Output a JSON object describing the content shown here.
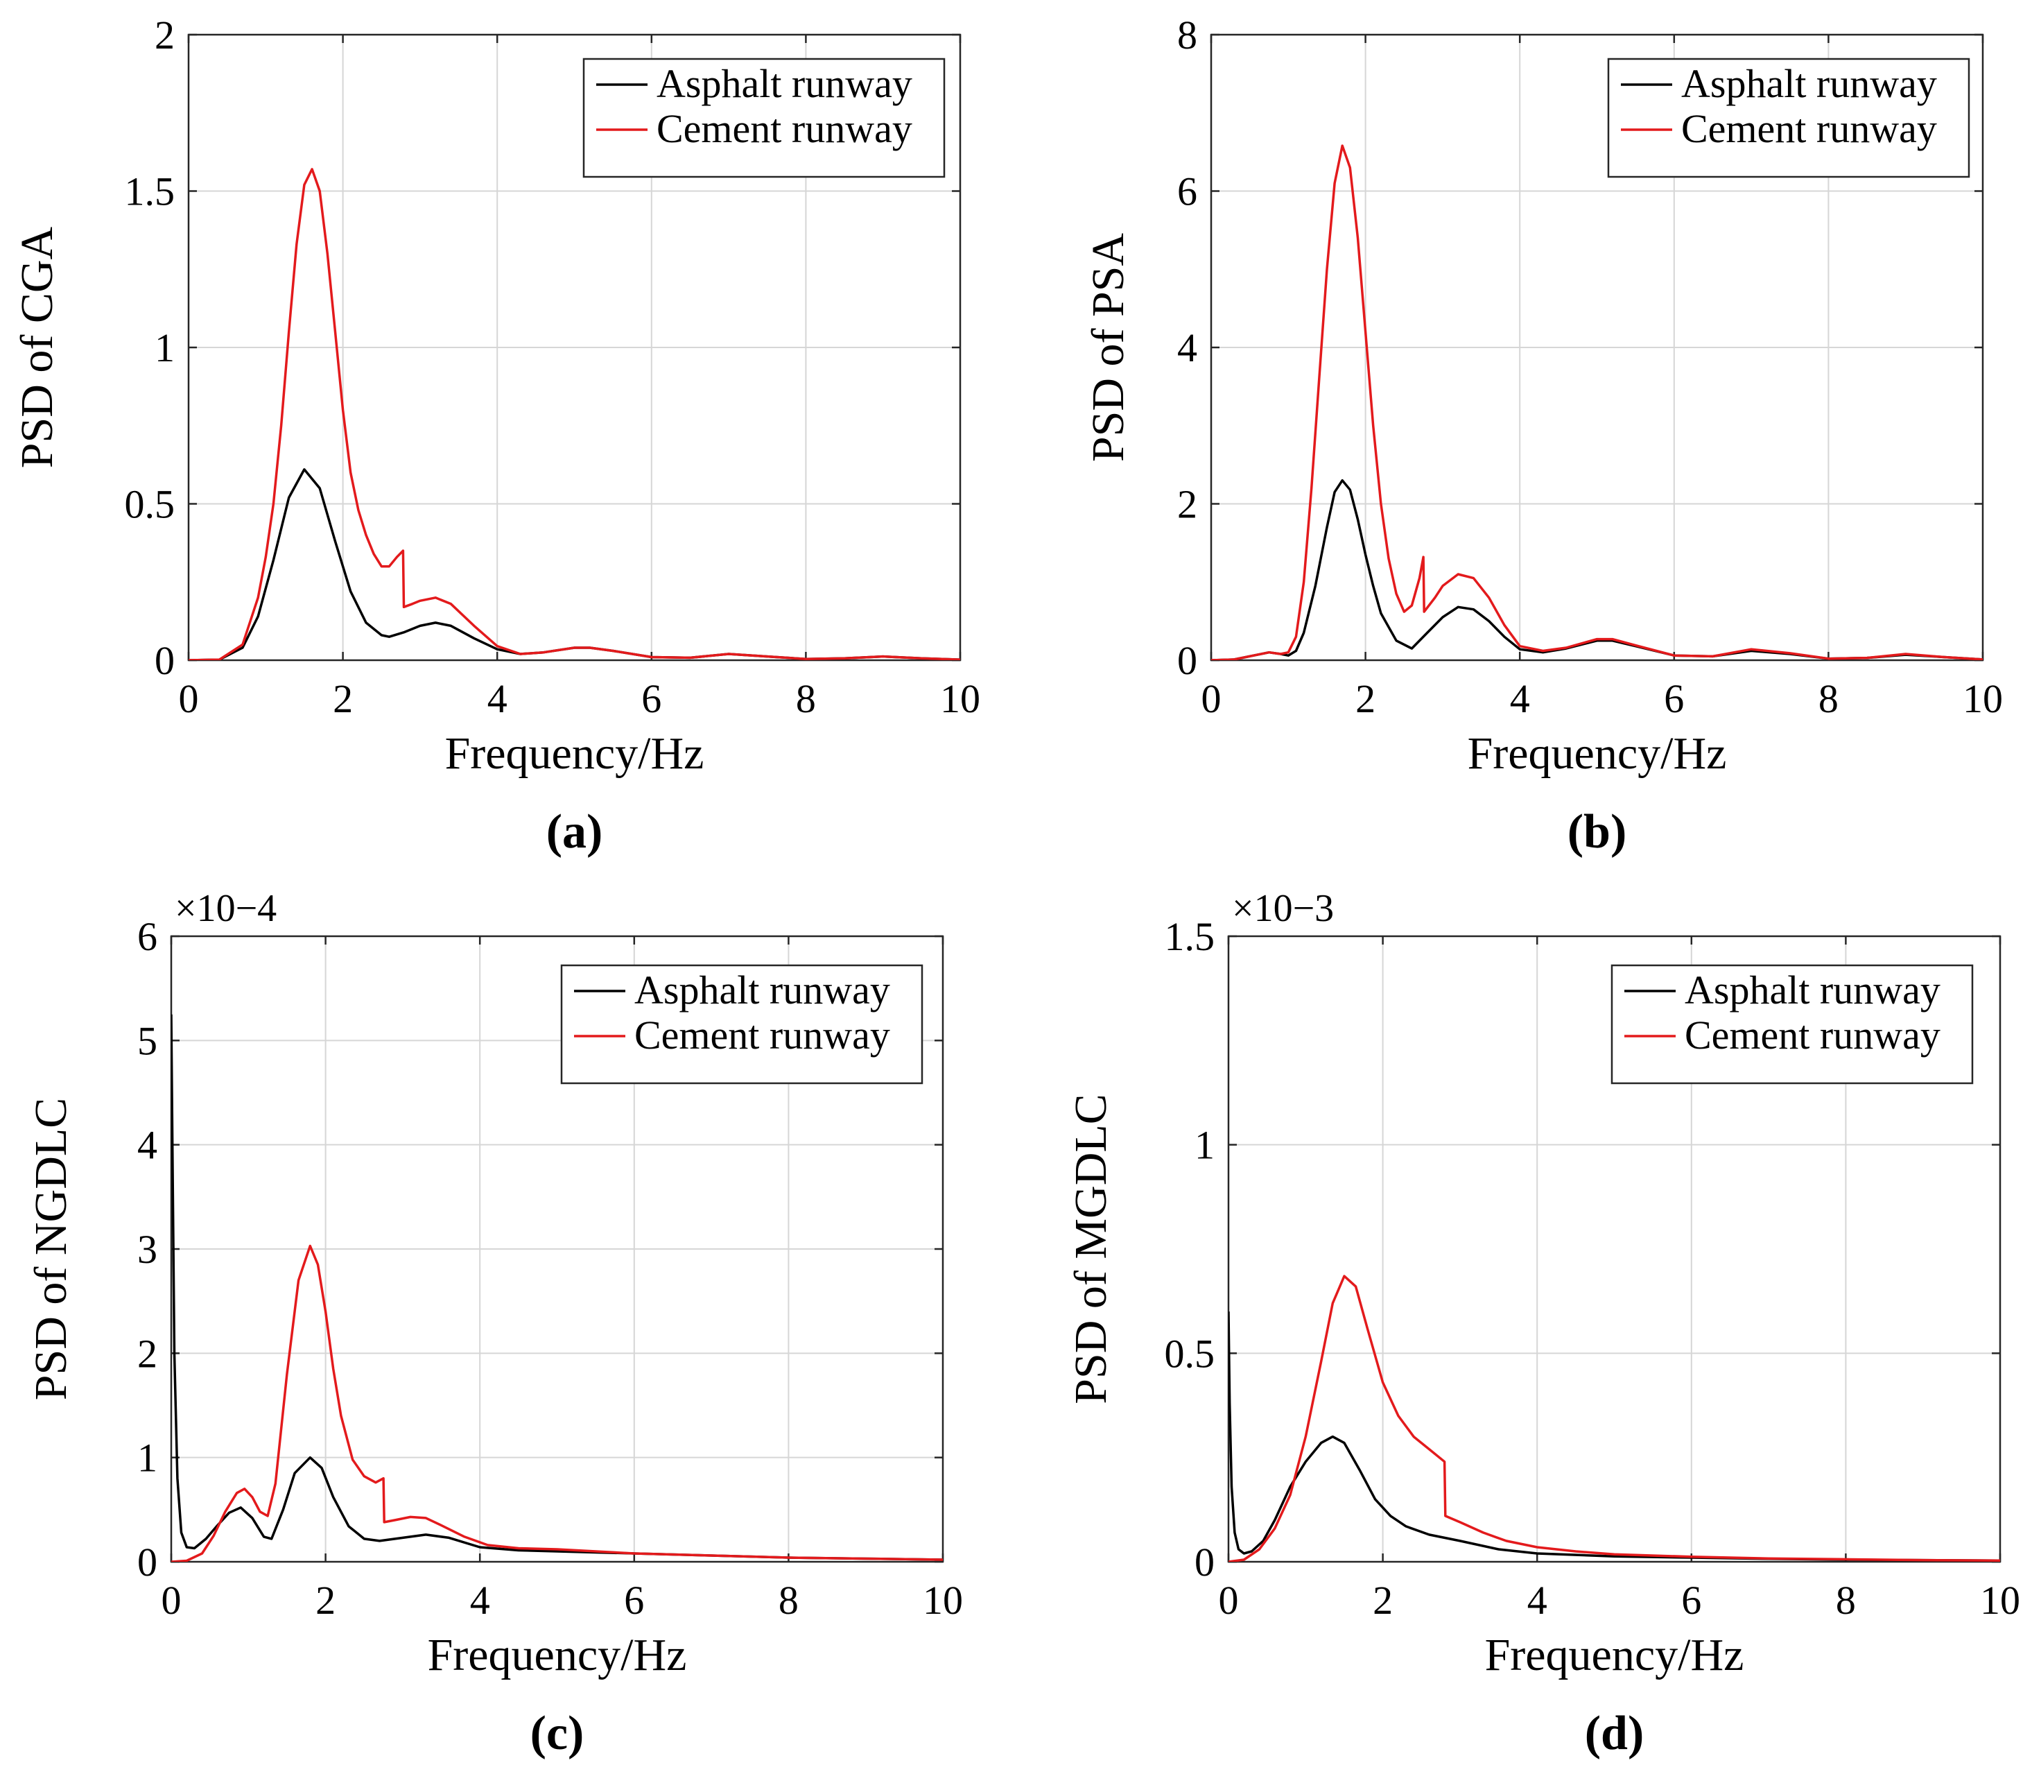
{
  "chart_data": [
    {
      "panel": "a",
      "caption": "(a)",
      "type": "line",
      "xlabel": "Frequency/Hz",
      "ylabel": "PSD of CGA",
      "xlim": [
        0,
        10
      ],
      "ylim": [
        0,
        2
      ],
      "xticks": [
        0,
        2,
        4,
        6,
        8,
        10
      ],
      "yticks": [
        0,
        0.5,
        1,
        1.5,
        2
      ],
      "ytick_labels": [
        "0",
        "0.5",
        "1",
        "1.5",
        "2"
      ],
      "exponent_label": "",
      "grid": true,
      "legend_position": "top-right",
      "series": [
        {
          "name": "Asphalt runway",
          "color": "#000000",
          "x": [
            0,
            0.4,
            0.7,
            0.9,
            1.1,
            1.3,
            1.5,
            1.7,
            1.9,
            2.1,
            2.3,
            2.5,
            2.6,
            2.8,
            3.0,
            3.2,
            3.4,
            3.7,
            4.0,
            4.3,
            4.6,
            5.0,
            5.2,
            5.5,
            6.0,
            6.5,
            7.0,
            7.5,
            8.0,
            8.5,
            9.0,
            9.5,
            10
          ],
          "y": [
            0,
            0.002,
            0.04,
            0.14,
            0.32,
            0.52,
            0.61,
            0.55,
            0.38,
            0.22,
            0.12,
            0.08,
            0.075,
            0.09,
            0.11,
            0.12,
            0.11,
            0.07,
            0.035,
            0.02,
            0.025,
            0.04,
            0.04,
            0.03,
            0.01,
            0.008,
            0.02,
            0.012,
            0.004,
            0.006,
            0.012,
            0.006,
            0.002
          ]
        },
        {
          "name": "Cement runway",
          "color": "#e31a1c",
          "x": [
            0,
            0.4,
            0.7,
            0.9,
            1.0,
            1.1,
            1.2,
            1.3,
            1.4,
            1.5,
            1.6,
            1.7,
            1.8,
            1.9,
            2.0,
            2.1,
            2.2,
            2.3,
            2.4,
            2.5,
            2.6,
            2.7,
            2.78,
            2.79,
            2.9,
            3.0,
            3.2,
            3.4,
            3.7,
            4.0,
            4.3,
            4.6,
            5.0,
            5.2,
            5.5,
            6.0,
            6.5,
            7.0,
            7.5,
            8.0,
            8.5,
            9.0,
            9.5,
            10
          ],
          "y": [
            0,
            0.002,
            0.05,
            0.2,
            0.33,
            0.5,
            0.75,
            1.05,
            1.33,
            1.52,
            1.57,
            1.5,
            1.3,
            1.05,
            0.8,
            0.6,
            0.48,
            0.4,
            0.34,
            0.3,
            0.3,
            0.33,
            0.35,
            0.17,
            0.18,
            0.19,
            0.2,
            0.18,
            0.11,
            0.045,
            0.02,
            0.025,
            0.04,
            0.04,
            0.03,
            0.01,
            0.008,
            0.02,
            0.012,
            0.004,
            0.006,
            0.012,
            0.006,
            0.002
          ]
        }
      ]
    },
    {
      "panel": "b",
      "caption": "(b)",
      "type": "line",
      "xlabel": "Frequency/Hz",
      "ylabel": "PSD of PSA",
      "xlim": [
        0,
        10
      ],
      "ylim": [
        0,
        8
      ],
      "xticks": [
        0,
        2,
        4,
        6,
        8,
        10
      ],
      "yticks": [
        0,
        2,
        4,
        6,
        8
      ],
      "ytick_labels": [
        "0",
        "2",
        "4",
        "6",
        "8"
      ],
      "exponent_label": "",
      "grid": true,
      "legend_position": "top-right",
      "series": [
        {
          "name": "Asphalt runway",
          "color": "#000000",
          "x": [
            0,
            0.3,
            0.55,
            0.75,
            0.9,
            1.0,
            1.1,
            1.2,
            1.35,
            1.5,
            1.6,
            1.7,
            1.8,
            1.9,
            2.0,
            2.1,
            2.2,
            2.4,
            2.6,
            2.8,
            3.0,
            3.2,
            3.4,
            3.6,
            3.8,
            4.0,
            4.3,
            4.6,
            5.0,
            5.2,
            5.5,
            6.0,
            6.5,
            7.0,
            7.5,
            8.0,
            8.5,
            9.0,
            9.5,
            10
          ],
          "y": [
            0,
            0.01,
            0.06,
            0.1,
            0.08,
            0.06,
            0.12,
            0.35,
            0.95,
            1.7,
            2.15,
            2.3,
            2.18,
            1.8,
            1.35,
            0.95,
            0.6,
            0.25,
            0.15,
            0.35,
            0.55,
            0.68,
            0.65,
            0.5,
            0.3,
            0.14,
            0.1,
            0.15,
            0.25,
            0.25,
            0.18,
            0.06,
            0.05,
            0.12,
            0.08,
            0.02,
            0.03,
            0.07,
            0.04,
            0.01
          ]
        },
        {
          "name": "Cement runway",
          "color": "#e31a1c",
          "x": [
            0,
            0.3,
            0.55,
            0.75,
            0.9,
            1.0,
            1.1,
            1.2,
            1.3,
            1.4,
            1.5,
            1.6,
            1.7,
            1.8,
            1.9,
            2.0,
            2.1,
            2.2,
            2.3,
            2.4,
            2.5,
            2.6,
            2.7,
            2.75,
            2.76,
            2.9,
            3.0,
            3.2,
            3.4,
            3.6,
            3.8,
            4.0,
            4.3,
            4.6,
            5.0,
            5.2,
            5.5,
            6.0,
            6.5,
            7.0,
            7.5,
            8.0,
            8.5,
            9.0,
            9.5,
            10
          ],
          "y": [
            0,
            0.01,
            0.06,
            0.1,
            0.08,
            0.1,
            0.3,
            1.0,
            2.2,
            3.6,
            5.0,
            6.1,
            6.58,
            6.3,
            5.4,
            4.2,
            3.0,
            2.0,
            1.3,
            0.85,
            0.62,
            0.7,
            1.05,
            1.32,
            0.62,
            0.8,
            0.95,
            1.1,
            1.05,
            0.8,
            0.45,
            0.18,
            0.12,
            0.16,
            0.27,
            0.27,
            0.19,
            0.06,
            0.05,
            0.14,
            0.09,
            0.02,
            0.03,
            0.08,
            0.04,
            0.01
          ]
        }
      ]
    },
    {
      "panel": "c",
      "caption": "(c)",
      "type": "line",
      "xlabel": "Frequency/Hz",
      "ylabel": "PSD of  NGDLC",
      "xlim": [
        0,
        10
      ],
      "ylim": [
        0,
        6
      ],
      "xticks": [
        0,
        2,
        4,
        6,
        8,
        10
      ],
      "yticks": [
        0,
        1,
        2,
        3,
        4,
        5,
        6
      ],
      "ytick_labels": [
        "0",
        "1",
        "2",
        "3",
        "4",
        "5",
        "6"
      ],
      "exponent_label": "×10−4",
      "grid": true,
      "legend_position": "top-right",
      "series": [
        {
          "name": "Asphalt runway",
          "color": "#000000",
          "x": [
            0,
            0.015,
            0.04,
            0.08,
            0.13,
            0.2,
            0.3,
            0.45,
            0.6,
            0.75,
            0.9,
            1.05,
            1.2,
            1.3,
            1.45,
            1.6,
            1.8,
            1.95,
            2.1,
            2.3,
            2.5,
            2.7,
            3.0,
            3.3,
            3.6,
            4.0,
            4.5,
            5.0,
            6.0,
            7.0,
            8.0,
            9.0,
            10
          ],
          "y": [
            5.25,
            4.0,
            2.0,
            0.8,
            0.28,
            0.14,
            0.13,
            0.22,
            0.35,
            0.47,
            0.52,
            0.42,
            0.24,
            0.22,
            0.5,
            0.85,
            1.0,
            0.9,
            0.62,
            0.34,
            0.22,
            0.2,
            0.23,
            0.26,
            0.23,
            0.14,
            0.11,
            0.1,
            0.08,
            0.06,
            0.04,
            0.03,
            0.02
          ]
        },
        {
          "name": "Cement runway",
          "color": "#e31a1c",
          "x": [
            0,
            0.2,
            0.4,
            0.55,
            0.7,
            0.85,
            0.95,
            1.05,
            1.15,
            1.25,
            1.35,
            1.5,
            1.65,
            1.8,
            1.9,
            2.0,
            2.1,
            2.2,
            2.35,
            2.5,
            2.65,
            2.75,
            2.76,
            2.9,
            3.1,
            3.3,
            3.5,
            3.8,
            4.1,
            4.5,
            5.0,
            6.0,
            7.0,
            8.0,
            9.0,
            10
          ],
          "y": [
            0,
            0.01,
            0.08,
            0.25,
            0.48,
            0.66,
            0.7,
            0.62,
            0.48,
            0.44,
            0.75,
            1.8,
            2.7,
            3.03,
            2.85,
            2.4,
            1.85,
            1.4,
            0.98,
            0.82,
            0.76,
            0.8,
            0.38,
            0.4,
            0.43,
            0.42,
            0.35,
            0.24,
            0.16,
            0.13,
            0.12,
            0.08,
            0.06,
            0.04,
            0.03,
            0.02
          ]
        }
      ]
    },
    {
      "panel": "d",
      "caption": "(d)",
      "type": "line",
      "xlabel": "Frequency/Hz",
      "ylabel": "PSD of  MGDLC",
      "xlim": [
        0,
        10
      ],
      "ylim": [
        0,
        1.5
      ],
      "xticks": [
        0,
        2,
        4,
        6,
        8,
        10
      ],
      "yticks": [
        0,
        0.5,
        1,
        1.5
      ],
      "ytick_labels": [
        "0",
        "0.5",
        "1",
        "1.5"
      ],
      "exponent_label": "×10−3",
      "grid": true,
      "legend_position": "top-right",
      "series": [
        {
          "name": "Asphalt runway",
          "color": "#000000",
          "x": [
            0,
            0.015,
            0.04,
            0.08,
            0.13,
            0.2,
            0.3,
            0.45,
            0.6,
            0.8,
            1.0,
            1.2,
            1.35,
            1.5,
            1.7,
            1.9,
            2.1,
            2.3,
            2.6,
            3.0,
            3.5,
            4.0,
            5.0,
            6.0,
            7.0,
            8.0,
            9.0,
            10
          ],
          "y": [
            0.6,
            0.38,
            0.18,
            0.07,
            0.03,
            0.02,
            0.025,
            0.05,
            0.1,
            0.18,
            0.24,
            0.285,
            0.3,
            0.285,
            0.22,
            0.15,
            0.11,
            0.085,
            0.065,
            0.05,
            0.03,
            0.02,
            0.013,
            0.01,
            0.007,
            0.005,
            0.004,
            0.003
          ]
        },
        {
          "name": "Cement runway",
          "color": "#e31a1c",
          "x": [
            0,
            0.2,
            0.4,
            0.6,
            0.8,
            1.0,
            1.2,
            1.35,
            1.5,
            1.65,
            1.8,
            2.0,
            2.2,
            2.4,
            2.6,
            2.8,
            2.81,
            3.0,
            3.3,
            3.6,
            4.0,
            4.5,
            5.0,
            6.0,
            7.0,
            8.0,
            9.0,
            10
          ],
          "y": [
            0,
            0.005,
            0.03,
            0.08,
            0.16,
            0.3,
            0.48,
            0.62,
            0.685,
            0.66,
            0.56,
            0.43,
            0.35,
            0.3,
            0.27,
            0.24,
            0.11,
            0.095,
            0.07,
            0.05,
            0.035,
            0.025,
            0.018,
            0.012,
            0.008,
            0.006,
            0.004,
            0.003
          ]
        }
      ]
    }
  ]
}
